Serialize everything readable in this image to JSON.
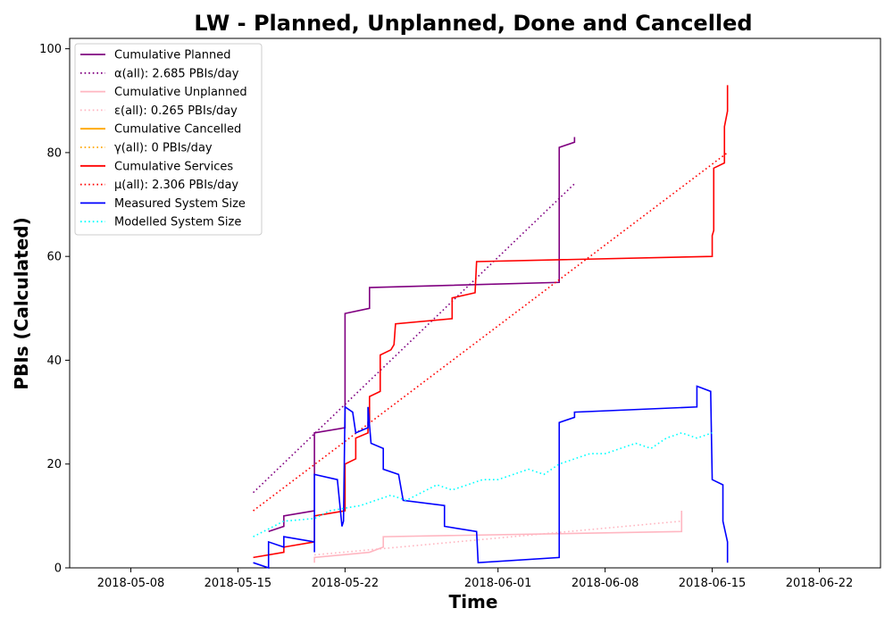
{
  "chart_data": {
    "type": "line",
    "title": "LW - Planned, Unplanned, Done  and Cancelled",
    "xlabel": "Time",
    "ylabel": "PBIs (Calculated)",
    "xlim": [
      "2018-05-04",
      "2018-06-26"
    ],
    "ylim": [
      0,
      102
    ],
    "x_ticks": [
      "2018-05-08",
      "2018-05-15",
      "2018-05-22",
      "2018-06-01",
      "2018-06-08",
      "2018-06-15",
      "2018-06-22"
    ],
    "y_ticks": [
      0,
      20,
      40,
      60,
      80,
      100
    ],
    "grid": false,
    "legend_position": "upper-left",
    "series": [
      {
        "name": "Cumulative Planned",
        "color": "#800080",
        "style": "solid",
        "points": [
          [
            "2018-05-17",
            7
          ],
          [
            "2018-05-18",
            8
          ],
          [
            "2018-05-18",
            10
          ],
          [
            "2018-05-20",
            11
          ],
          [
            "2018-05-20",
            26
          ],
          [
            "2018-05-22",
            27
          ],
          [
            "2018-05-22",
            49
          ],
          [
            "2018-05-23.6",
            50
          ],
          [
            "2018-05-23.6",
            54
          ],
          [
            "2018-06-05",
            55
          ],
          [
            "2018-06-05",
            81
          ],
          [
            "2018-06-06",
            82
          ],
          [
            "2018-06-06",
            83
          ]
        ]
      },
      {
        "name": "α(all): 2.685 PBIs/day",
        "color": "#800080",
        "style": "dotted",
        "points": [
          [
            "2018-05-16",
            14.5
          ],
          [
            "2018-06-06",
            74
          ]
        ]
      },
      {
        "name": "Cumulative Unplanned",
        "color": "#ffb6c1",
        "style": "solid",
        "points": [
          [
            "2018-05-20",
            1
          ],
          [
            "2018-05-20",
            2
          ],
          [
            "2018-05-23.6",
            3
          ],
          [
            "2018-05-24.5",
            4
          ],
          [
            "2018-05-24.5",
            6
          ],
          [
            "2018-06-13",
            7
          ],
          [
            "2018-06-13",
            11
          ]
        ]
      },
      {
        "name": "ε(all): 0.265 PBIs/day",
        "color": "#ffb6c1",
        "style": "dotted",
        "points": [
          [
            "2018-05-20",
            2.5
          ],
          [
            "2018-06-13",
            9
          ]
        ]
      },
      {
        "name": "Cumulative Cancelled",
        "color": "#ffa500",
        "style": "solid",
        "points": []
      },
      {
        "name": "γ(all): 0 PBIs/day",
        "color": "#ffa500",
        "style": "dotted",
        "points": []
      },
      {
        "name": "Cumulative Services",
        "color": "#ff0000",
        "style": "solid",
        "points": [
          [
            "2018-05-16",
            2
          ],
          [
            "2018-05-18",
            3
          ],
          [
            "2018-05-18",
            4
          ],
          [
            "2018-05-20",
            5
          ],
          [
            "2018-05-20",
            10
          ],
          [
            "2018-05-22",
            11
          ],
          [
            "2018-05-22",
            20
          ],
          [
            "2018-05-22.7",
            21
          ],
          [
            "2018-05-22.7",
            25
          ],
          [
            "2018-05-23.5",
            26
          ],
          [
            "2018-05-23.5",
            28
          ],
          [
            "2018-05-23.6",
            28
          ],
          [
            "2018-05-23.6",
            33
          ],
          [
            "2018-05-24.3",
            34
          ],
          [
            "2018-05-24.3",
            41
          ],
          [
            "2018-05-25",
            42
          ],
          [
            "2018-05-25.2",
            43
          ],
          [
            "2018-05-25.3",
            47
          ],
          [
            "2018-05-29",
            48
          ],
          [
            "2018-05-29",
            52
          ],
          [
            "2018-05-30.5",
            53
          ],
          [
            "2018-05-30.6",
            59
          ],
          [
            "2018-06-15",
            60
          ],
          [
            "2018-06-15",
            64
          ],
          [
            "2018-06-15.1",
            65
          ],
          [
            "2018-06-15.1",
            77
          ],
          [
            "2018-06-15.8",
            78
          ],
          [
            "2018-06-15.8",
            85
          ],
          [
            "2018-06-16",
            88
          ],
          [
            "2018-06-16",
            93
          ]
        ]
      },
      {
        "name": "μ(all): 2.306 PBIs/day",
        "color": "#ff0000",
        "style": "dotted",
        "points": [
          [
            "2018-05-16",
            11
          ],
          [
            "2018-06-16",
            80
          ]
        ]
      },
      {
        "name": "Measured System Size",
        "color": "#0000ff",
        "style": "solid",
        "points": [
          [
            "2018-05-16",
            1
          ],
          [
            "2018-05-17",
            0
          ],
          [
            "2018-05-17",
            5
          ],
          [
            "2018-05-18",
            4
          ],
          [
            "2018-05-18",
            6
          ],
          [
            "2018-05-20",
            5
          ],
          [
            "2018-05-20",
            3
          ],
          [
            "2018-05-20",
            18
          ],
          [
            "2018-05-21.5",
            17
          ],
          [
            "2018-05-21.7",
            11
          ],
          [
            "2018-05-21.8",
            8
          ],
          [
            "2018-05-21.9",
            9
          ],
          [
            "2018-05-22",
            31
          ],
          [
            "2018-05-22.5",
            30
          ],
          [
            "2018-05-22.7",
            26
          ],
          [
            "2018-05-23.5",
            27
          ],
          [
            "2018-05-23.5",
            31
          ],
          [
            "2018-05-23.7",
            24
          ],
          [
            "2018-05-24.5",
            23
          ],
          [
            "2018-05-24.5",
            19
          ],
          [
            "2018-05-25.5",
            18
          ],
          [
            "2018-05-25.8",
            13
          ],
          [
            "2018-05-28.5",
            12
          ],
          [
            "2018-05-28.5",
            8
          ],
          [
            "2018-05-30.6",
            7
          ],
          [
            "2018-05-30.7",
            1
          ],
          [
            "2018-06-05",
            2
          ],
          [
            "2018-06-05",
            28
          ],
          [
            "2018-06-06",
            29
          ],
          [
            "2018-06-06",
            30
          ],
          [
            "2018-06-14",
            31
          ],
          [
            "2018-06-14",
            35
          ],
          [
            "2018-06-14.9",
            34
          ],
          [
            "2018-06-15",
            17
          ],
          [
            "2018-06-15.7",
            16
          ],
          [
            "2018-06-15.7",
            9
          ],
          [
            "2018-06-16",
            5
          ],
          [
            "2018-06-16",
            1
          ]
        ]
      },
      {
        "name": "Modelled System Size",
        "color": "#00ffff",
        "style": "dotted",
        "points": [
          [
            "2018-05-16",
            6
          ],
          [
            "2018-05-17",
            7.5
          ],
          [
            "2018-05-18",
            9
          ],
          [
            "2018-05-20",
            9.5
          ],
          [
            "2018-05-21",
            11
          ],
          [
            "2018-05-22",
            11.5
          ],
          [
            "2018-05-23",
            12
          ],
          [
            "2018-05-24",
            13
          ],
          [
            "2018-05-25",
            14
          ],
          [
            "2018-05-26",
            13
          ],
          [
            "2018-05-27",
            14.5
          ],
          [
            "2018-05-28",
            16
          ],
          [
            "2018-05-29",
            15
          ],
          [
            "2018-05-30",
            16
          ],
          [
            "2018-05-31",
            17
          ],
          [
            "2018-06-01",
            17
          ],
          [
            "2018-06-02",
            18
          ],
          [
            "2018-06-03",
            19
          ],
          [
            "2018-06-04",
            18
          ],
          [
            "2018-06-05",
            20
          ],
          [
            "2018-06-06",
            21
          ],
          [
            "2018-06-07",
            22
          ],
          [
            "2018-06-08",
            22
          ],
          [
            "2018-06-09",
            23
          ],
          [
            "2018-06-10",
            24
          ],
          [
            "2018-06-11",
            23
          ],
          [
            "2018-06-12",
            25
          ],
          [
            "2018-06-13",
            26
          ],
          [
            "2018-06-14",
            25
          ],
          [
            "2018-06-15",
            26
          ]
        ]
      }
    ]
  }
}
